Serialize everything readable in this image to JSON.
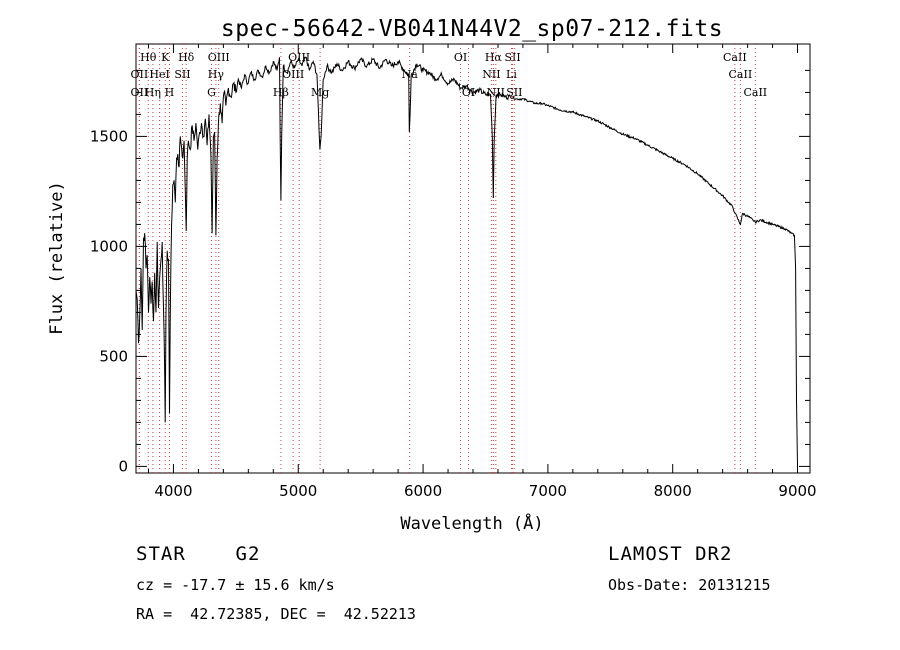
{
  "chart_data": {
    "type": "line",
    "title": "spec-56642-VB041N44V2_sp07-212.fits",
    "xlabel": "Wavelength (Å)",
    "ylabel": "Flux (relative)",
    "xlim": [
      3700,
      9100
    ],
    "ylim": [
      -30,
      1920
    ],
    "x_ticks": [
      4000,
      5000,
      6000,
      7000,
      8000,
      9000
    ],
    "y_ticks": [
      0,
      500,
      1000,
      1500
    ],
    "grid": false,
    "spectrum_points": [
      [
        3700,
        800
      ],
      [
        3710,
        760
      ],
      [
        3720,
        560
      ],
      [
        3730,
        680
      ],
      [
        3740,
        900
      ],
      [
        3750,
        620
      ],
      [
        3760,
        1040
      ],
      [
        3770,
        1060
      ],
      [
        3780,
        900
      ],
      [
        3790,
        960
      ],
      [
        3800,
        700
      ],
      [
        3810,
        860
      ],
      [
        3820,
        740
      ],
      [
        3830,
        840
      ],
      [
        3840,
        660
      ],
      [
        3850,
        880
      ],
      [
        3860,
        700
      ],
      [
        3870,
        1020
      ],
      [
        3880,
        720
      ],
      [
        3890,
        860
      ],
      [
        3900,
        940
      ],
      [
        3910,
        1020
      ],
      [
        3920,
        720
      ],
      [
        3930,
        420
      ],
      [
        3934,
        200
      ],
      [
        3940,
        700
      ],
      [
        3950,
        980
      ],
      [
        3960,
        940
      ],
      [
        3968,
        240
      ],
      [
        3975,
        700
      ],
      [
        3985,
        1100
      ],
      [
        3995,
        1280
      ],
      [
        4005,
        1300
      ],
      [
        4015,
        1200
      ],
      [
        4025,
        1400
      ],
      [
        4035,
        1420
      ],
      [
        4045,
        1360
      ],
      [
        4055,
        1500
      ],
      [
        4065,
        1450
      ],
      [
        4075,
        1400
      ],
      [
        4085,
        1480
      ],
      [
        4095,
        1250
      ],
      [
        4102,
        1070
      ],
      [
        4110,
        1400
      ],
      [
        4120,
        1480
      ],
      [
        4135,
        1440
      ],
      [
        4150,
        1550
      ],
      [
        4165,
        1480
      ],
      [
        4180,
        1560
      ],
      [
        4195,
        1440
      ],
      [
        4210,
        1520
      ],
      [
        4225,
        1560
      ],
      [
        4240,
        1500
      ],
      [
        4255,
        1580
      ],
      [
        4270,
        1460
      ],
      [
        4285,
        1600
      ],
      [
        4300,
        1420
      ],
      [
        4310,
        1060
      ],
      [
        4320,
        1500
      ],
      [
        4330,
        1520
      ],
      [
        4340,
        1050
      ],
      [
        4350,
        1400
      ],
      [
        4360,
        1560
      ],
      [
        4375,
        1650
      ],
      [
        4390,
        1560
      ],
      [
        4405,
        1700
      ],
      [
        4420,
        1640
      ],
      [
        4440,
        1720
      ],
      [
        4460,
        1680
      ],
      [
        4480,
        1740
      ],
      [
        4500,
        1700
      ],
      [
        4520,
        1760
      ],
      [
        4545,
        1720
      ],
      [
        4570,
        1780
      ],
      [
        4595,
        1740
      ],
      [
        4620,
        1790
      ],
      [
        4650,
        1760
      ],
      [
        4680,
        1800
      ],
      [
        4710,
        1770
      ],
      [
        4740,
        1820
      ],
      [
        4770,
        1790
      ],
      [
        4800,
        1840
      ],
      [
        4830,
        1800
      ],
      [
        4850,
        1860
      ],
      [
        4855,
        1480
      ],
      [
        4861,
        1210
      ],
      [
        4867,
        1500
      ],
      [
        4880,
        1820
      ],
      [
        4910,
        1790
      ],
      [
        4940,
        1840
      ],
      [
        4970,
        1810
      ],
      [
        5000,
        1850
      ],
      [
        5030,
        1820
      ],
      [
        5060,
        1860
      ],
      [
        5090,
        1800
      ],
      [
        5120,
        1840
      ],
      [
        5150,
        1780
      ],
      [
        5167,
        1520
      ],
      [
        5173,
        1440
      ],
      [
        5183,
        1500
      ],
      [
        5200,
        1760
      ],
      [
        5230,
        1820
      ],
      [
        5270,
        1790
      ],
      [
        5310,
        1830
      ],
      [
        5350,
        1800
      ],
      [
        5400,
        1840
      ],
      [
        5450,
        1810
      ],
      [
        5500,
        1850
      ],
      [
        5550,
        1820
      ],
      [
        5600,
        1850
      ],
      [
        5650,
        1810
      ],
      [
        5700,
        1850
      ],
      [
        5750,
        1820
      ],
      [
        5800,
        1840
      ],
      [
        5850,
        1800
      ],
      [
        5885,
        1780
      ],
      [
        5890,
        1520
      ],
      [
        5896,
        1600
      ],
      [
        5905,
        1780
      ],
      [
        5950,
        1830
      ],
      [
        6000,
        1800
      ],
      [
        6050,
        1790
      ],
      [
        6100,
        1760
      ],
      [
        6150,
        1780
      ],
      [
        6200,
        1740
      ],
      [
        6250,
        1760
      ],
      [
        6300,
        1720
      ],
      [
        6350,
        1730
      ],
      [
        6400,
        1700
      ],
      [
        6450,
        1710
      ],
      [
        6500,
        1690
      ],
      [
        6540,
        1690
      ],
      [
        6555,
        1500
      ],
      [
        6563,
        1220
      ],
      [
        6570,
        1480
      ],
      [
        6585,
        1690
      ],
      [
        6620,
        1690
      ],
      [
        6660,
        1680
      ],
      [
        6700,
        1680
      ],
      [
        6750,
        1670
      ],
      [
        6800,
        1670
      ],
      [
        6850,
        1660
      ],
      [
        6900,
        1650
      ],
      [
        6950,
        1650
      ],
      [
        7000,
        1640
      ],
      [
        7100,
        1620
      ],
      [
        7200,
        1610
      ],
      [
        7300,
        1590
      ],
      [
        7400,
        1570
      ],
      [
        7500,
        1540
      ],
      [
        7600,
        1510
      ],
      [
        7700,
        1490
      ],
      [
        7800,
        1460
      ],
      [
        7900,
        1430
      ],
      [
        8000,
        1400
      ],
      [
        8100,
        1370
      ],
      [
        8200,
        1330
      ],
      [
        8300,
        1280
      ],
      [
        8400,
        1230
      ],
      [
        8480,
        1180
      ],
      [
        8500,
        1150
      ],
      [
        8542,
        1100
      ],
      [
        8560,
        1150
      ],
      [
        8620,
        1130
      ],
      [
        8662,
        1110
      ],
      [
        8700,
        1120
      ],
      [
        8800,
        1100
      ],
      [
        8900,
        1080
      ],
      [
        8950,
        1060
      ],
      [
        8975,
        1050
      ],
      [
        8985,
        900
      ],
      [
        8992,
        300
      ],
      [
        9000,
        0
      ]
    ],
    "line_markers": [
      {
        "label": "Hθ",
        "x": 3798,
        "row": 0
      },
      {
        "label": "K",
        "x": 3934,
        "row": 0
      },
      {
        "label": "Hδ",
        "x": 4102,
        "row": 0
      },
      {
        "label": "OIII",
        "x": 4363,
        "row": 0
      },
      {
        "label": "OIII",
        "x": 5007,
        "row": 0
      },
      {
        "label": "OI",
        "x": 6300,
        "row": 0
      },
      {
        "label": "Hα",
        "x": 6563,
        "row": 0
      },
      {
        "label": "SII",
        "x": 6717,
        "row": 0
      },
      {
        "label": "CaII",
        "x": 8498,
        "row": 0
      },
      {
        "label": "OII",
        "x": 3727,
        "row": 1
      },
      {
        "label": "HeI",
        "x": 3889,
        "row": 1
      },
      {
        "label": "SII",
        "x": 4072,
        "row": 1
      },
      {
        "label": "Hγ",
        "x": 4340,
        "row": 1
      },
      {
        "label": "OIII",
        "x": 4959,
        "row": 1
      },
      {
        "label": "Na",
        "x": 5893,
        "row": 1
      },
      {
        "label": "NII",
        "x": 6548,
        "row": 1
      },
      {
        "label": "Li",
        "x": 6708,
        "row": 1
      },
      {
        "label": "CaII",
        "x": 8542,
        "row": 1
      },
      {
        "label": "OII",
        "x": 3727,
        "row": 2
      },
      {
        "label": "Hη",
        "x": 3835,
        "row": 2
      },
      {
        "label": "H",
        "x": 3968,
        "row": 2
      },
      {
        "label": "G",
        "x": 4305,
        "row": 2
      },
      {
        "label": "Hβ",
        "x": 4861,
        "row": 2
      },
      {
        "label": "Mg",
        "x": 5175,
        "row": 2
      },
      {
        "label": "OI",
        "x": 6364,
        "row": 2
      },
      {
        "label": "NII",
        "x": 6583,
        "row": 2
      },
      {
        "label": "SII",
        "x": 6731,
        "row": 2
      },
      {
        "label": "CaII",
        "x": 8662,
        "row": 2
      }
    ],
    "annotations": {
      "class_line": "STAR    G2",
      "cz_line": "cz = -17.7 ± 15.6 km/s",
      "coords_line": "RA =  42.72385, DEC =  42.52213",
      "survey": "LAMOST DR2",
      "obs_date": "Obs-Date: 20131215"
    }
  }
}
